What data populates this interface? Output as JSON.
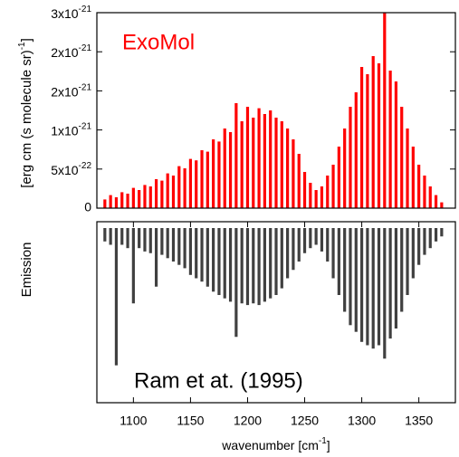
{
  "chart_data": [
    {
      "type": "stick",
      "annotation": "ExoMol",
      "color": "#ff0000",
      "ylabel": "Emission",
      "ylabel_units": "[erg cm (s molecule sr)",
      "ylabel_units_exponent": "-1",
      "ylabel_units_end": "]",
      "xlim": [
        1068,
        1382
      ],
      "ylim": [
        0,
        2.7e-21
      ],
      "yticks": [
        0,
        {
          "value": 5.4e-22,
          "label": "5x10",
          "exponent": "-22"
        },
        {
          "value": 1.08e-21,
          "label": "1x10",
          "exponent": "-21"
        },
        {
          "value": 1.62e-21,
          "label": "2x10",
          "exponent": "-21"
        },
        {
          "value": 2.16e-21,
          "label": "2x10",
          "exponent": "-21"
        },
        {
          "value": 2.7e-21,
          "label": "3x10",
          "exponent": "-21"
        }
      ],
      "x": [
        1075,
        1080,
        1085,
        1090,
        1095,
        1100,
        1105,
        1110,
        1115,
        1120,
        1125,
        1130,
        1135,
        1140,
        1145,
        1150,
        1155,
        1160,
        1165,
        1170,
        1175,
        1180,
        1185,
        1190,
        1195,
        1200,
        1205,
        1210,
        1215,
        1220,
        1225,
        1230,
        1235,
        1240,
        1245,
        1250,
        1255,
        1260,
        1265,
        1270,
        1275,
        1280,
        1285,
        1290,
        1295,
        1300,
        1305,
        1310,
        1315,
        1320,
        1325,
        1330,
        1335,
        1340,
        1345,
        1350,
        1355,
        1360,
        1365,
        1370
      ],
      "values": [
        1.2e-22,
        1.8e-22,
        1.5e-22,
        2.2e-22,
        2e-22,
        2.8e-22,
        2.5e-22,
        3.2e-22,
        3e-22,
        4e-22,
        3.8e-22,
        4.8e-22,
        4.5e-22,
        5.8e-22,
        5.5e-22,
        6.8e-22,
        6.6e-22,
        8e-22,
        7.8e-22,
        9.5e-22,
        9.2e-22,
        1.1e-21,
        1.05e-21,
        1.45e-21,
        1.2e-21,
        1.4e-21,
        1.25e-21,
        1.38e-21,
        1.3e-21,
        1.35e-21,
        1.25e-21,
        1.2e-21,
        1.1e-21,
        9.5e-22,
        7.5e-22,
        5e-22,
        3.5e-22,
        2.5e-22,
        3e-22,
        4.5e-22,
        6e-22,
        8.5e-22,
        1.1e-21,
        1.4e-21,
        1.6e-21,
        1.95e-21,
        1.85e-21,
        2.1e-21,
        2e-21,
        2.7e-21,
        1.9e-21,
        1.75e-21,
        1.4e-21,
        1.1e-21,
        8.5e-22,
        6e-22,
        4.5e-22,
        3e-22,
        1.8e-22,
        8e-23
      ]
    },
    {
      "type": "stick",
      "inverted": true,
      "annotation": "Ram et at. (1995)",
      "color": "#000000",
      "xlabel": "wavenumber [cm",
      "xlabel_exponent": "-1",
      "xlabel_end": "]",
      "xlim": [
        1068,
        1382
      ],
      "xticks": [
        1100,
        1150,
        1200,
        1250,
        1300,
        1350
      ],
      "x": [
        1075,
        1080,
        1085,
        1090,
        1095,
        1100,
        1105,
        1110,
        1115,
        1120,
        1125,
        1130,
        1135,
        1140,
        1145,
        1150,
        1155,
        1160,
        1165,
        1170,
        1175,
        1180,
        1185,
        1190,
        1195,
        1200,
        1205,
        1210,
        1215,
        1220,
        1225,
        1230,
        1235,
        1240,
        1245,
        1250,
        1255,
        1260,
        1265,
        1270,
        1275,
        1280,
        1285,
        1290,
        1295,
        1300,
        1305,
        1310,
        1315,
        1320,
        1325,
        1330,
        1335,
        1340,
        1345,
        1350,
        1355,
        1360,
        1365,
        1370
      ],
      "values": [
        0.08,
        0.1,
        0.82,
        0.1,
        0.12,
        0.45,
        0.12,
        0.14,
        0.15,
        0.35,
        0.16,
        0.18,
        0.2,
        0.22,
        0.24,
        0.28,
        0.3,
        0.32,
        0.35,
        0.38,
        0.4,
        0.42,
        0.44,
        0.65,
        0.45,
        0.46,
        0.45,
        0.46,
        0.44,
        0.42,
        0.4,
        0.36,
        0.3,
        0.25,
        0.2,
        0.15,
        0.12,
        0.1,
        0.14,
        0.2,
        0.3,
        0.4,
        0.5,
        0.58,
        0.62,
        0.68,
        0.7,
        0.72,
        0.7,
        0.78,
        0.66,
        0.6,
        0.5,
        0.4,
        0.3,
        0.22,
        0.16,
        0.12,
        0.08,
        0.05
      ]
    }
  ]
}
